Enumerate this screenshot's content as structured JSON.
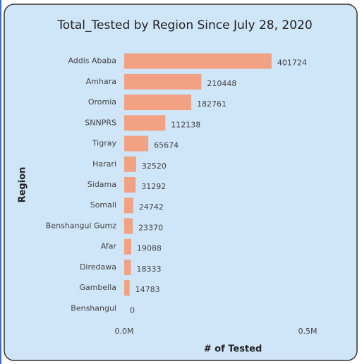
{
  "chart_data": {
    "type": "bar",
    "orientation": "horizontal",
    "title": "Total_Tested by Region Since July 28, 2020",
    "y_label": "Region",
    "x_label": "# of Tested",
    "categories": [
      "Addis Ababa",
      "Amhara",
      "Oromia",
      "SNNPRS",
      "Tigray",
      "Harari",
      "Sidama",
      "Somali",
      "Benshangul Gumz",
      "Afar",
      "Diredawa",
      "Gambella",
      "Benshangul"
    ],
    "values": [
      401724,
      210448,
      182761,
      112138,
      65674,
      32520,
      31292,
      24742,
      23370,
      19088,
      18333,
      14783,
      0
    ],
    "color": "#f2a282",
    "xlim": [
      0,
      500000
    ],
    "xticks": [
      {
        "value": 0,
        "label": "0.0M"
      },
      {
        "value": 500000,
        "label": "0.5M"
      }
    ],
    "grid": false
  }
}
